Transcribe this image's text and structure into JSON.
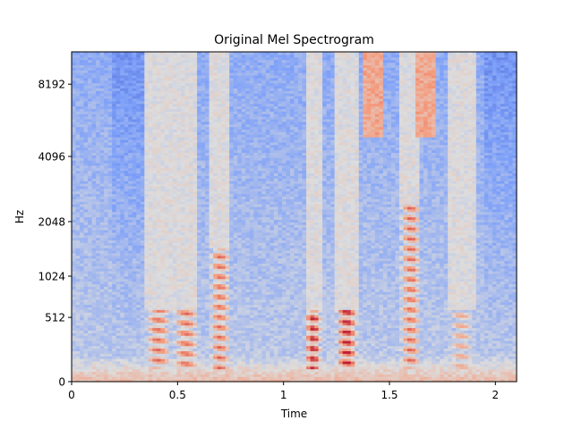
{
  "chart_data": {
    "type": "heatmap",
    "title": "Original Mel Spectrogram",
    "xlabel": "Time",
    "ylabel": "Hz",
    "xlim": [
      0,
      2.1
    ],
    "x_ticks": [
      0,
      0.5,
      1,
      1.5,
      2
    ],
    "x_tick_labels": [
      "0",
      "0.5",
      "1",
      "1.5",
      "2"
    ],
    "y_scale": "mel",
    "y_ticks": [
      0,
      512,
      1024,
      2048,
      4096,
      8192
    ],
    "y_tick_labels": [
      "0",
      "512",
      "1024",
      "2048",
      "4096",
      "8192"
    ],
    "colormap": "coolwarm",
    "colors": {
      "low": "#3b4cc0",
      "mid": "#dddddd",
      "high": "#b40426"
    },
    "time_frames": 110,
    "mel_bins": 128,
    "high_energy_regions": [
      {
        "t": [
          0.35,
          0.47
        ],
        "hz": [
          150,
          600
        ],
        "level": "high"
      },
      {
        "t": [
          0.48,
          0.6
        ],
        "hz": [
          150,
          600
        ],
        "level": "high"
      },
      {
        "t": [
          0.65,
          0.75
        ],
        "hz": [
          150,
          1500
        ],
        "level": "high"
      },
      {
        "t": [
          1.1,
          1.18
        ],
        "hz": [
          150,
          600
        ],
        "level": "peak"
      },
      {
        "t": [
          1.25,
          1.35
        ],
        "hz": [
          150,
          600
        ],
        "level": "peak"
      },
      {
        "t": [
          1.55,
          1.65
        ],
        "hz": [
          150,
          2500
        ],
        "level": "high"
      },
      {
        "t": [
          1.78,
          1.9
        ],
        "hz": [
          150,
          600
        ],
        "level": "medium"
      }
    ]
  }
}
